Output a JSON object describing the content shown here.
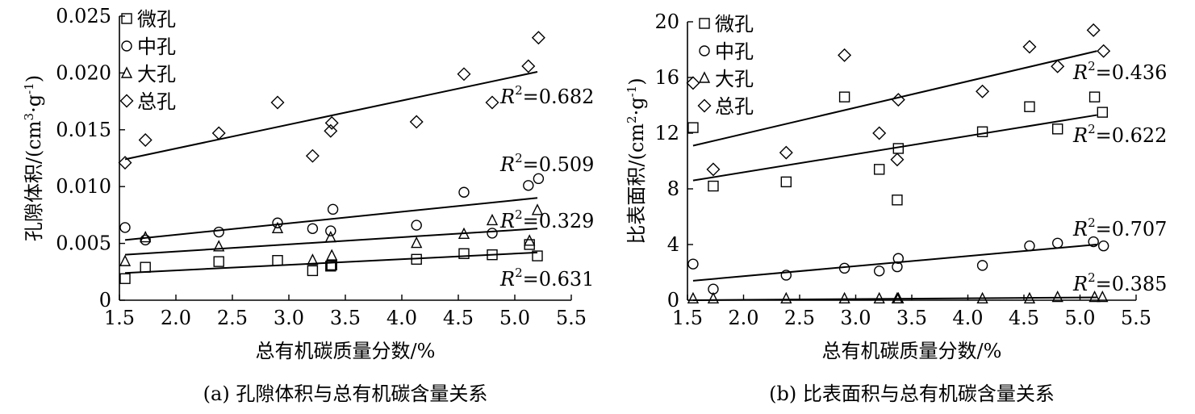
{
  "chart_data": [
    {
      "type": "scatter",
      "title": "",
      "caption": "(a) 孔隙体积与总有机碳含量关系",
      "xlabel": "总有机碳质量分数/%",
      "ylabel_text": "孔隙体积/(cm",
      "ylabel_sup1": "3",
      "ylabel_mid": "·g",
      "ylabel_sup2": "-1",
      "ylabel_end": ")",
      "xlim": [
        1.5,
        5.5
      ],
      "ylim": [
        0,
        0.025
      ],
      "xticks": [
        "1.5",
        "2.0",
        "2.5",
        "3.0",
        "3.5",
        "4.0",
        "4.5",
        "5.0",
        "5.5"
      ],
      "yticks": [
        "0",
        "0.005",
        "0.010",
        "0.015",
        "0.020",
        "0.025"
      ],
      "xtick_vals": [
        1.5,
        2.0,
        2.5,
        3.0,
        3.5,
        4.0,
        4.5,
        5.0,
        5.5
      ],
      "ytick_vals": [
        0,
        0.005,
        0.01,
        0.015,
        0.02,
        0.025
      ],
      "legend_position": "top-left",
      "series": [
        {
          "name": "微孔",
          "marker": "square",
          "x": [
            1.55,
            1.73,
            2.38,
            2.9,
            3.21,
            3.37,
            3.38,
            4.13,
            4.55,
            4.8,
            5.13,
            5.2
          ],
          "y": [
            0.0019,
            0.0029,
            0.0034,
            0.0035,
            0.0026,
            0.003,
            0.0031,
            0.0036,
            0.0041,
            0.004,
            0.0049,
            0.0039
          ]
        },
        {
          "name": "中孔",
          "marker": "circle",
          "x": [
            1.55,
            1.73,
            2.38,
            2.9,
            3.21,
            3.37,
            3.39,
            4.13,
            4.55,
            4.8,
            5.12,
            5.21
          ],
          "y": [
            0.0064,
            0.0053,
            0.006,
            0.0068,
            0.0063,
            0.0061,
            0.008,
            0.0066,
            0.0095,
            0.0059,
            0.0101,
            0.0107
          ]
        },
        {
          "name": "大孔",
          "marker": "triangle",
          "x": [
            1.55,
            1.73,
            2.38,
            2.9,
            3.21,
            3.37,
            3.38,
            4.13,
            4.55,
            4.8,
            5.13,
            5.2
          ],
          "y": [
            0.0034,
            0.0055,
            0.0047,
            0.0063,
            0.0035,
            0.0055,
            0.0039,
            0.005,
            0.0058,
            0.007,
            0.0052,
            0.0079
          ]
        },
        {
          "name": "总孔",
          "marker": "diamond",
          "x": [
            1.55,
            1.73,
            2.38,
            2.9,
            3.21,
            3.37,
            3.38,
            4.13,
            4.55,
            4.8,
            5.12,
            5.21
          ],
          "y": [
            0.0121,
            0.0141,
            0.0147,
            0.0174,
            0.0127,
            0.0149,
            0.0156,
            0.0157,
            0.0199,
            0.0174,
            0.0206,
            0.0231
          ]
        }
      ],
      "fit_lines": [
        {
          "series": "总孔",
          "x": [
            1.55,
            5.2
          ],
          "y": [
            0.0124,
            0.0201
          ]
        },
        {
          "series": "中孔",
          "x": [
            1.55,
            5.2
          ],
          "y": [
            0.0053,
            0.009
          ]
        },
        {
          "series": "大孔",
          "x": [
            1.55,
            5.2
          ],
          "y": [
            0.004,
            0.0063
          ]
        },
        {
          "series": "微孔",
          "x": [
            1.55,
            5.2
          ],
          "y": [
            0.0024,
            0.0042
          ]
        }
      ],
      "annotations": [
        {
          "r2_label": "R",
          "r2_sup": "2",
          "value": "=0.682",
          "series": "总孔",
          "x": 4.35,
          "y": 0.0178
        },
        {
          "r2_label": "R",
          "r2_sup": "2",
          "value": "=0.509",
          "series": "中孔",
          "x": 4.62,
          "y": 0.0115
        },
        {
          "r2_label": "R",
          "r2_sup": "2",
          "value": "=0.329",
          "series": "大孔",
          "x": 4.62,
          "y": 0.0068
        },
        {
          "r2_label": "R",
          "r2_sup": "2",
          "value": "=0.631",
          "series": "微孔",
          "x": 4.62,
          "y": 0.0016
        }
      ]
    },
    {
      "type": "scatter",
      "title": "",
      "caption": "(b) 比表面积与总有机碳含量关系",
      "xlabel": "总有机碳质量分数/%",
      "ylabel_text": "比表面积/(cm",
      "ylabel_sup1": "2",
      "ylabel_mid": "·g",
      "ylabel_sup2": "-1",
      "ylabel_end": ")",
      "xlim": [
        1.5,
        5.5
      ],
      "ylim": [
        0,
        20
      ],
      "xticks": [
        "1.5",
        "2.0",
        "2.5",
        "3.0",
        "3.5",
        "4.0",
        "4.5",
        "5.0",
        "5.5"
      ],
      "yticks": [
        "0",
        "4",
        "8",
        "12",
        "16",
        "20"
      ],
      "xtick_vals": [
        1.5,
        2.0,
        2.5,
        3.0,
        3.5,
        4.0,
        4.5,
        5.0,
        5.5
      ],
      "ytick_vals": [
        0,
        4,
        8,
        12,
        16,
        20
      ],
      "legend_position": "top-left",
      "series": [
        {
          "name": "微孔",
          "marker": "square",
          "x": [
            1.55,
            1.73,
            2.38,
            2.9,
            3.21,
            3.37,
            3.38,
            4.13,
            4.55,
            4.8,
            5.13,
            5.2
          ],
          "y": [
            12.4,
            8.2,
            8.5,
            14.6,
            9.4,
            7.2,
            10.9,
            12.1,
            13.9,
            12.3,
            14.6,
            13.5
          ]
        },
        {
          "name": "中孔",
          "marker": "circle",
          "x": [
            1.55,
            1.73,
            2.38,
            2.9,
            3.21,
            3.37,
            3.38,
            4.13,
            4.55,
            4.8,
            5.12,
            5.21
          ],
          "y": [
            2.6,
            0.8,
            1.8,
            2.3,
            2.1,
            2.4,
            3.0,
            2.5,
            3.9,
            4.1,
            4.2,
            3.9
          ]
        },
        {
          "name": "大孔",
          "marker": "triangle",
          "x": [
            1.55,
            1.73,
            2.38,
            2.9,
            3.21,
            3.37,
            3.38,
            4.13,
            4.55,
            4.8,
            5.13,
            5.2
          ],
          "y": [
            0.1,
            0.1,
            0.1,
            0.1,
            0.1,
            0.1,
            0.1,
            0.1,
            0.1,
            0.2,
            0.2,
            0.2
          ]
        },
        {
          "name": "总孔",
          "marker": "diamond",
          "x": [
            1.55,
            1.73,
            2.38,
            2.9,
            3.21,
            3.37,
            3.38,
            4.13,
            4.55,
            4.8,
            5.12,
            5.21
          ],
          "y": [
            15.6,
            9.4,
            10.6,
            17.6,
            12.0,
            10.1,
            14.4,
            15.0,
            18.2,
            16.8,
            19.4,
            17.9
          ]
        }
      ],
      "fit_lines": [
        {
          "series": "总孔",
          "x": [
            1.55,
            5.15
          ],
          "y": [
            11.1,
            17.9
          ]
        },
        {
          "series": "微孔",
          "x": [
            1.55,
            5.15
          ],
          "y": [
            8.6,
            13.3
          ]
        },
        {
          "series": "中孔",
          "x": [
            1.55,
            5.15
          ],
          "y": [
            1.4,
            4.0
          ]
        },
        {
          "series": "大孔",
          "x": [
            1.55,
            5.15
          ],
          "y": [
            0.0,
            0.2
          ]
        }
      ],
      "annotations": [
        {
          "r2_label": "R",
          "r2_sup": "2",
          "value": "=0.436",
          "series": "总孔",
          "x": 4.87,
          "y": 15.9
        },
        {
          "r2_label": "R",
          "r2_sup": "2",
          "value": "=0.622",
          "series": "微孔",
          "x": 4.87,
          "y": 11.6
        },
        {
          "r2_label": "R",
          "r2_sup": "2",
          "value": "=0.707",
          "series": "中孔",
          "x": 4.87,
          "y": 4.8
        },
        {
          "r2_label": "R",
          "r2_sup": "2",
          "value": "=0.385",
          "series": "大孔",
          "x": 4.87,
          "y": 0.7
        }
      ]
    }
  ]
}
